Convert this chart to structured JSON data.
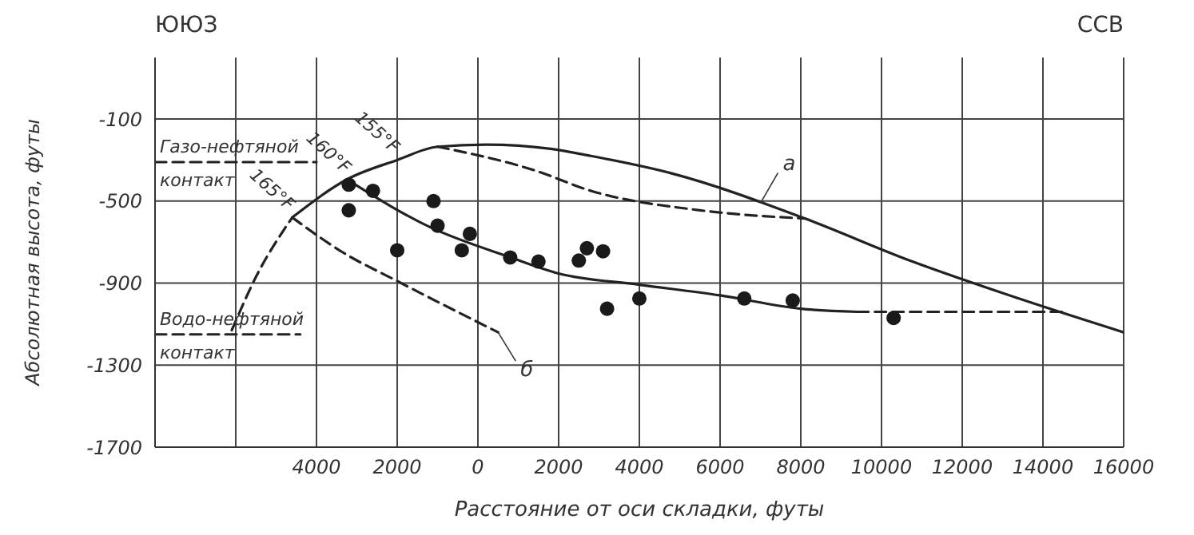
{
  "chart_data": {
    "type": "line",
    "xlabel": "Расстояние от оси складки, футы",
    "ylabel": "Абсолютная высота, футы",
    "xlim": [
      -8000,
      16000
    ],
    "xticks": [
      {
        "value": -8000,
        "label": null
      },
      {
        "value": -6000,
        "label": null
      },
      {
        "value": -4000,
        "label": "4000"
      },
      {
        "value": -2000,
        "label": "2000"
      },
      0,
      2000,
      4000,
      6000,
      8000,
      10000,
      12000,
      14000,
      16000
    ],
    "ylim": [
      -1700,
      200
    ],
    "yticks": [
      -100,
      -500,
      -900,
      -1300,
      -1700
    ],
    "grid": true,
    "legend": false,
    "marker": "none",
    "series": [
      {
        "type": "line",
        "line_style": "dashed",
        "color": "#222222",
        "x": [
          -6100,
          -5500,
          -4600
        ],
        "values": [
          -1130,
          -870,
          -580
        ]
      },
      {
        "type": "line",
        "line_style": "solid",
        "color": "#222222",
        "x": [
          -4600,
          -3200,
          -2000,
          -1000,
          200,
          1800,
          2800,
          4800,
          8100,
          10700,
          13400,
          16000
        ],
        "values": [
          -580,
          -390,
          -300,
          -235,
          -225,
          -245,
          -280,
          -365,
          -585,
          -790,
          -975,
          -1140
        ]
      },
      {
        "type": "line",
        "line_style": "dashed",
        "color": "#222222",
        "x": [
          -1000,
          1400,
          2800,
          5500,
          8100
        ],
        "values": [
          -235,
          -350,
          -450,
          -545,
          -585
        ]
      },
      {
        "type": "line",
        "line_style": "solid",
        "color": "#222222",
        "x": [
          -3200,
          -1200,
          800,
          2000,
          4000,
          6000,
          8000,
          9400
        ],
        "values": [
          -400,
          -626,
          -774,
          -853,
          -908,
          -960,
          -1025,
          -1040
        ]
      },
      {
        "type": "line",
        "line_style": "dashed",
        "color": "#222222",
        "x": [
          9400,
          14600
        ],
        "values": [
          -1040,
          -1040
        ]
      },
      {
        "type": "line",
        "line_style": "dashed",
        "color": "#222222",
        "x": [
          -4600,
          -3350,
          -2000,
          500
        ],
        "values": [
          -580,
          -750,
          -890,
          -1140
        ]
      },
      {
        "type": "line",
        "line_style": "dashed",
        "color": "#222222",
        "x": [
          -8000,
          -4000
        ],
        "values": [
          -310,
          -310
        ]
      },
      {
        "type": "line",
        "line_style": "dashed",
        "color": "#222222",
        "x": [
          -8000,
          -4400
        ],
        "values": [
          -1150,
          -1150
        ]
      },
      {
        "type": "scatter",
        "marker": "circle",
        "color": "#1a1a1a",
        "x": [
          -3200,
          -3200,
          -2600,
          -2000,
          -1100,
          -1000,
          -400,
          -200,
          800,
          1500,
          2500,
          2700,
          3100,
          3200,
          4000,
          6600,
          7800,
          10300
        ],
        "values": [
          -420,
          -545,
          -450,
          -740,
          -500,
          -620,
          -740,
          -660,
          -775,
          -795,
          -790,
          -730,
          -745,
          -1025,
          -975,
          -975,
          -985,
          -1070
        ]
      }
    ],
    "annotations": [
      "ЮЮЗ",
      "ССВ",
      {
        "text": "155°F",
        "x": -2000,
        "y": -300
      },
      {
        "text": "160°F",
        "x": -3200,
        "y": -400
      },
      {
        "text": "165°F",
        "x": -4600,
        "y": -580
      },
      {
        "text": "Газо-нефтяной контакт",
        "x": -8000,
        "y": -310
      },
      {
        "text": "Водо-нефтяной контакт",
        "x": -8000,
        "y": -1150
      },
      {
        "text": "а",
        "x": 7000,
        "y": -510
      },
      {
        "text": "б",
        "x": 500,
        "y": -1140
      }
    ]
  }
}
